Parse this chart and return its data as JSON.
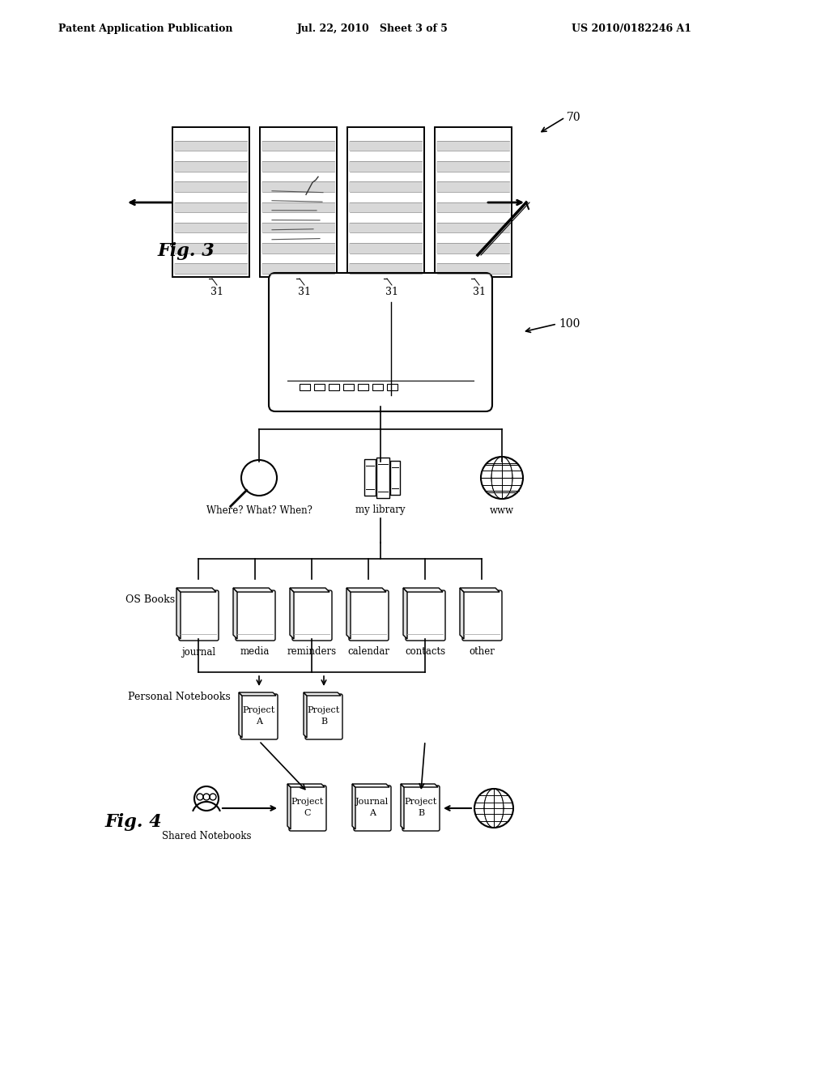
{
  "header_left": "Patent Application Publication",
  "header_mid": "Jul. 22, 2010   Sheet 3 of 5",
  "header_right": "US 2010/0182246 A1",
  "fig3_label": "Fig. 3",
  "fig4_label": "Fig. 4",
  "label_70": "70",
  "label_100": "100",
  "label_31": "31",
  "bg_color": "#ffffff",
  "line_color": "#000000",
  "gray_light": "#cccccc",
  "gray_mid": "#999999"
}
